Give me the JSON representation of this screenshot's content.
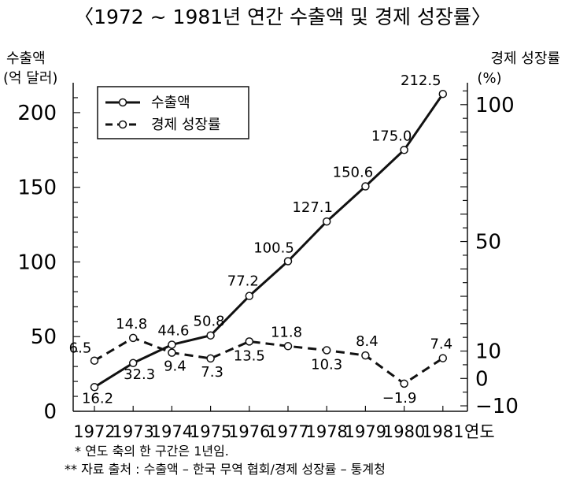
{
  "chart_data": {
    "type": "line",
    "title": "〈1972 ~ 1981년 연간 수출액 및 경제 성장률〉",
    "x": [
      "1972",
      "1973",
      "1974",
      "1975",
      "1976",
      "1977",
      "1978",
      "1979",
      "1980",
      "1981"
    ],
    "xlabel": "연도",
    "y_left_label": [
      "수출액",
      "(억 달러)"
    ],
    "y_right_label": [
      "경제 성장률",
      "(%)"
    ],
    "y_left_ticks": [
      "0",
      "50",
      "100",
      "150",
      "200"
    ],
    "y_right_ticks": [
      "-10",
      "0",
      "10",
      "50",
      "100"
    ],
    "y_left_lim": [
      0,
      220
    ],
    "y_right_lim": [
      -12,
      108
    ],
    "legend_position": "top-left",
    "grid": false,
    "series": [
      {
        "name": "수출액",
        "axis": "left",
        "style": "solid",
        "values": [
          16.2,
          32.3,
          44.6,
          50.8,
          77.2,
          100.5,
          127.1,
          150.6,
          175.0,
          212.5
        ],
        "labels": [
          "16.2",
          "32.3",
          "44.6",
          "50.8",
          "77.2",
          "100.5",
          "127.1",
          "150.6",
          "175.0",
          "212.5"
        ]
      },
      {
        "name": "경제 성장률",
        "axis": "right",
        "style": "dashed",
        "values": [
          6.5,
          14.8,
          9.4,
          7.3,
          13.5,
          11.8,
          10.3,
          8.4,
          -1.9,
          7.4
        ],
        "labels": [
          "6.5",
          "14.8",
          "9.4",
          "7.3",
          "13.5",
          "11.8",
          "10.3",
          "8.4",
          "−1.9",
          "7.4"
        ]
      }
    ],
    "notes": [
      "* 연도 축의 한 구간은  1년임.",
      "** 자료 출처 : 수출액 – 한국 무역 협회/경제 성장률 – 통계청"
    ]
  }
}
